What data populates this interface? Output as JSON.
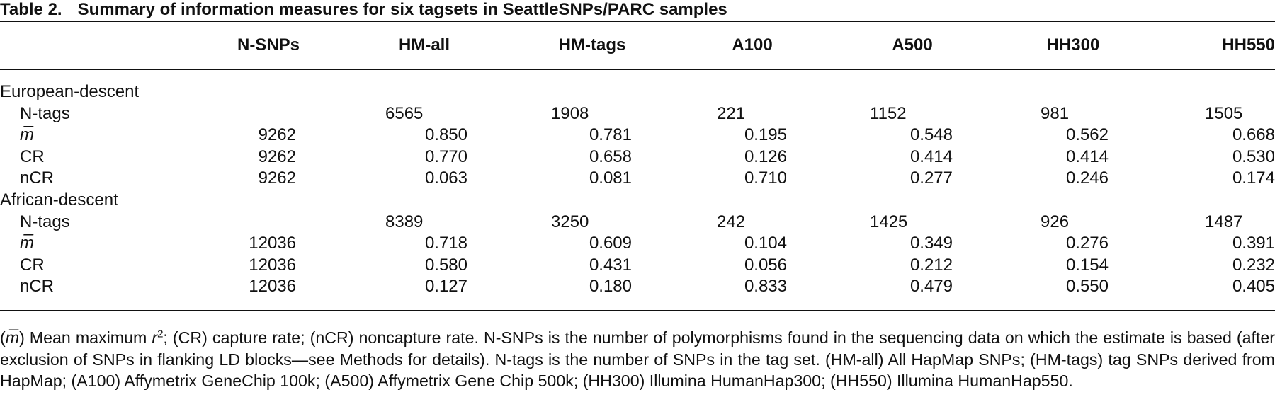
{
  "table": {
    "label": "Table 2.",
    "title": "Summary of information measures for six tagsets in SeattleSNPs/PARC samples",
    "columns": [
      "N-SNPs",
      "HM-all",
      "HM-tags",
      "A100",
      "A500",
      "HH300",
      "HH550"
    ],
    "groups": [
      {
        "name": "European-descent",
        "rows": [
          {
            "label": "N-tags",
            "cells": [
              null,
              "6565",
              "1908",
              "221",
              "1152",
              "981",
              "1505"
            ]
          },
          {
            "label": "m̅",
            "cells": [
              "9262",
              "0.850",
              "0.781",
              "0.195",
              "0.548",
              "0.562",
              "0.668"
            ]
          },
          {
            "label": "CR",
            "cells": [
              "9262",
              "0.770",
              "0.658",
              "0.126",
              "0.414",
              "0.414",
              "0.530"
            ]
          },
          {
            "label": "nCR",
            "cells": [
              "9262",
              "0.063",
              "0.081",
              "0.710",
              "0.277",
              "0.246",
              "0.174"
            ]
          }
        ]
      },
      {
        "name": "African-descent",
        "rows": [
          {
            "label": "N-tags",
            "cells": [
              null,
              "8389",
              "3250",
              "242",
              "1425",
              "926",
              "1487"
            ]
          },
          {
            "label": "m̅",
            "cells": [
              "12036",
              "0.718",
              "0.609",
              "0.104",
              "0.349",
              "0.276",
              "0.391"
            ]
          },
          {
            "label": "CR",
            "cells": [
              "12036",
              "0.580",
              "0.431",
              "0.056",
              "0.212",
              "0.154",
              "0.232"
            ]
          },
          {
            "label": "nCR",
            "cells": [
              "12036",
              "0.127",
              "0.180",
              "0.833",
              "0.479",
              "0.550",
              "0.405"
            ]
          }
        ]
      }
    ]
  },
  "footnote": [
    "(",
    "m̅",
    ") Mean maximum ",
    "r",
    "2",
    "; (CR) capture rate; (nCR) noncapture rate. N-SNPs is the number of polymorphisms found in the sequencing data on which the estimate is based (after exclusion of SNPs in flanking LD blocks—see Methods for details). N-tags is the number of SNPs in the tag set. (HM-all) All HapMap SNPs; (HM-tags) tag SNPs derived from HapMap; (A100) Affymetrix GeneChip 100k; (A500) Affymetrix Gene Chip 500k; (HH300) Illumina HumanHap300; (HH550) Illumina HumanHap550."
  ]
}
